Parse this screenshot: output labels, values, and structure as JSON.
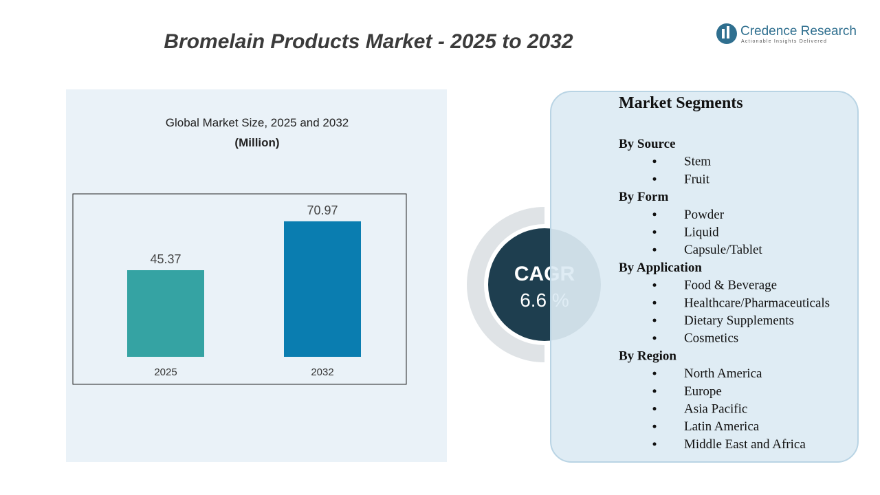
{
  "header": {
    "title": "Bromelain Products Market - 2025 to 2032"
  },
  "logo": {
    "name": "Credence Research",
    "tagline": "Actionable Insights Delivered"
  },
  "chart_data": {
    "type": "bar",
    "title": "Global Market Size, 2025 and 2032",
    "subtitle": "(Million)",
    "categories": [
      "2025",
      "2032"
    ],
    "values": [
      45.37,
      70.97
    ],
    "colors": [
      "#35a3a3",
      "#0a7db0"
    ]
  },
  "cagr": {
    "label": "CAGR",
    "value": "6.6 %"
  },
  "segments": {
    "title": "Market Segments",
    "groups": [
      {
        "name": "By Source",
        "items": [
          "Stem",
          "Fruit"
        ]
      },
      {
        "name": "By Form",
        "items": [
          "Powder",
          "Liquid",
          "Capsule/Tablet"
        ]
      },
      {
        "name": "By Application",
        "items": [
          "Food & Beverage",
          "Healthcare/Pharmaceuticals",
          "Dietary Supplements",
          "Cosmetics"
        ]
      },
      {
        "name": "By Region",
        "items": [
          "North America",
          "Europe",
          "Asia Pacific",
          "Latin America",
          "Middle East and Africa"
        ]
      }
    ]
  }
}
